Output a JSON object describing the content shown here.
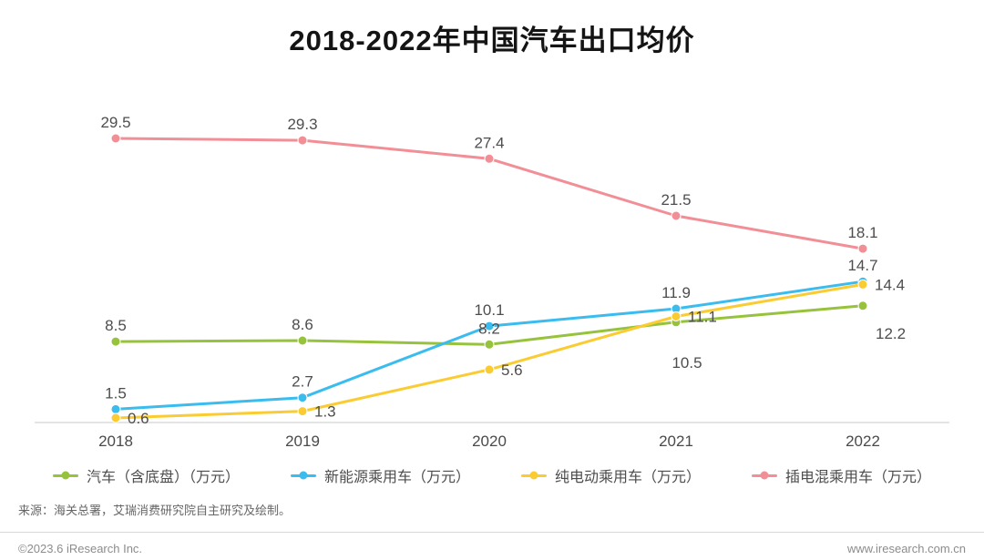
{
  "source_note": "来源：海关总署，艾瑞消费研究院自主研究及绘制。",
  "footer": {
    "left": "©2023.6 iResearch Inc.",
    "right": "www.iresearch.com.cn"
  },
  "chart_data": {
    "type": "line",
    "title": "2018-2022年中国汽车出口均价",
    "categories": [
      "2018",
      "2019",
      "2020",
      "2021",
      "2022"
    ],
    "unit": "万元",
    "series": [
      {
        "name": "汽车（含底盘）（万元）",
        "color": "#97C23C",
        "values": [
          8.5,
          8.6,
          8.2,
          10.5,
          12.2
        ],
        "label_positions": [
          "top",
          "top",
          "top",
          "bottom-far",
          "bottom-right"
        ]
      },
      {
        "name": "新能源乘用车（万元）",
        "color": "#3BBCEF",
        "values": [
          1.5,
          2.7,
          10.1,
          11.9,
          14.7
        ],
        "label_positions": [
          "top",
          "top",
          "top",
          "top",
          "top"
        ]
      },
      {
        "name": "纯电动乘用车（万元）",
        "color": "#FACC32",
        "values": [
          0.6,
          1.3,
          5.6,
          11.1,
          14.4
        ],
        "label_positions": [
          "right",
          "right",
          "right",
          "right",
          "right"
        ]
      },
      {
        "name": "插电混乘用车（万元）",
        "color": "#F28E96",
        "values": [
          29.5,
          29.3,
          27.4,
          21.5,
          18.1
        ],
        "label_positions": [
          "top",
          "top",
          "top",
          "top",
          "top"
        ]
      }
    ],
    "ylim": [
      0,
      31
    ],
    "grid": false,
    "x_axis_line": true,
    "legend_position": "bottom"
  }
}
